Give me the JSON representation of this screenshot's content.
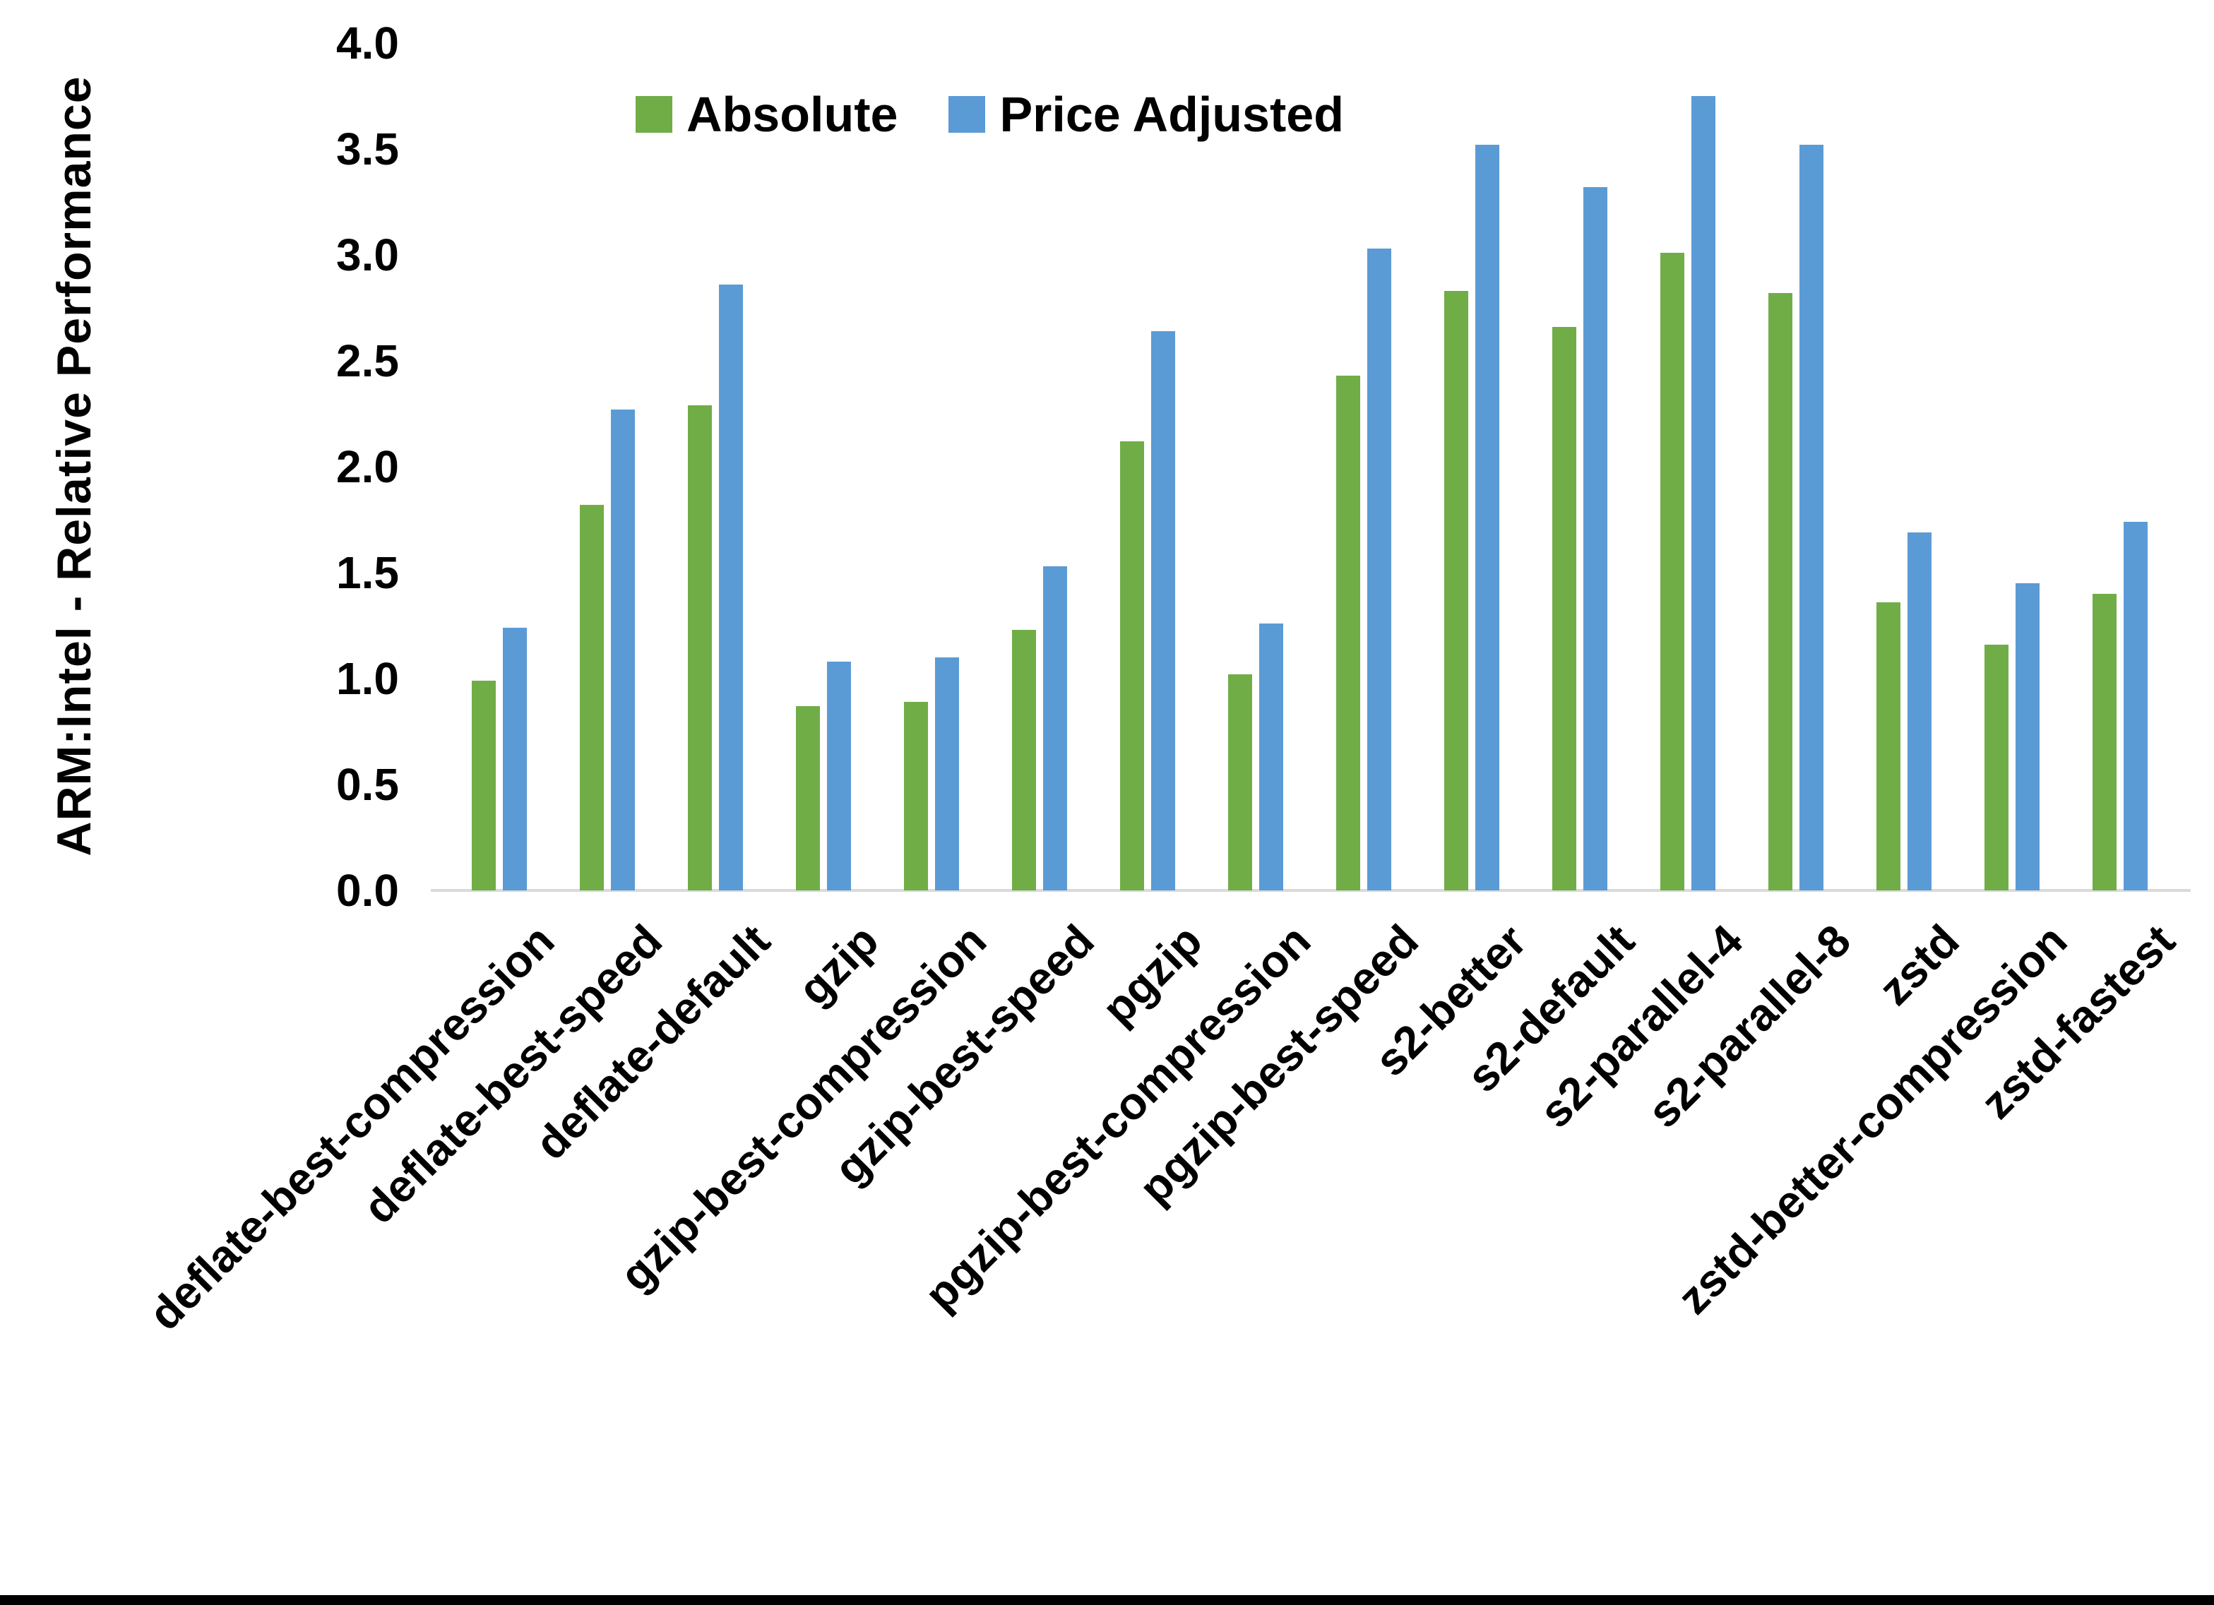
{
  "chart_data": {
    "type": "bar",
    "title": "",
    "xlabel": "",
    "ylabel": "ARM:Intel - Relative Performance",
    "ylim": [
      0.0,
      4.0
    ],
    "ytick_step": 0.5,
    "yticks": [
      "0.0",
      "0.5",
      "1.0",
      "1.5",
      "2.0",
      "2.5",
      "3.0",
      "3.5",
      "4.0"
    ],
    "grid": false,
    "legend_position": "top-center-inside",
    "axis_line_color": "#D9D9D9",
    "categories": [
      "deflate-best-compression",
      "deflate-best-speed",
      "deflate-default",
      "gzip",
      "gzip-best-compression",
      "gzip-best-speed",
      "pgzip",
      "pgzip-best-compression",
      "pgzip-best-speed",
      "s2-better",
      "s2-default",
      "s2-parallel-4",
      "s2-parallel-8",
      "zstd",
      "zstd-better-compression",
      "zstd-fastest"
    ],
    "series": [
      {
        "name": "Absolute",
        "color": "#70AD47",
        "values": [
          0.99,
          1.82,
          2.29,
          0.87,
          0.89,
          1.23,
          2.12,
          1.02,
          2.43,
          2.83,
          2.66,
          3.01,
          2.82,
          1.36,
          1.16,
          1.4
        ]
      },
      {
        "name": "Price Adjusted",
        "color": "#5B9BD5",
        "values": [
          1.24,
          2.27,
          2.86,
          1.08,
          1.1,
          1.53,
          2.64,
          1.26,
          3.03,
          3.52,
          3.32,
          3.75,
          3.52,
          1.69,
          1.45,
          1.74
        ]
      }
    ]
  },
  "frame": {
    "bottom_border_color": "#000000"
  }
}
